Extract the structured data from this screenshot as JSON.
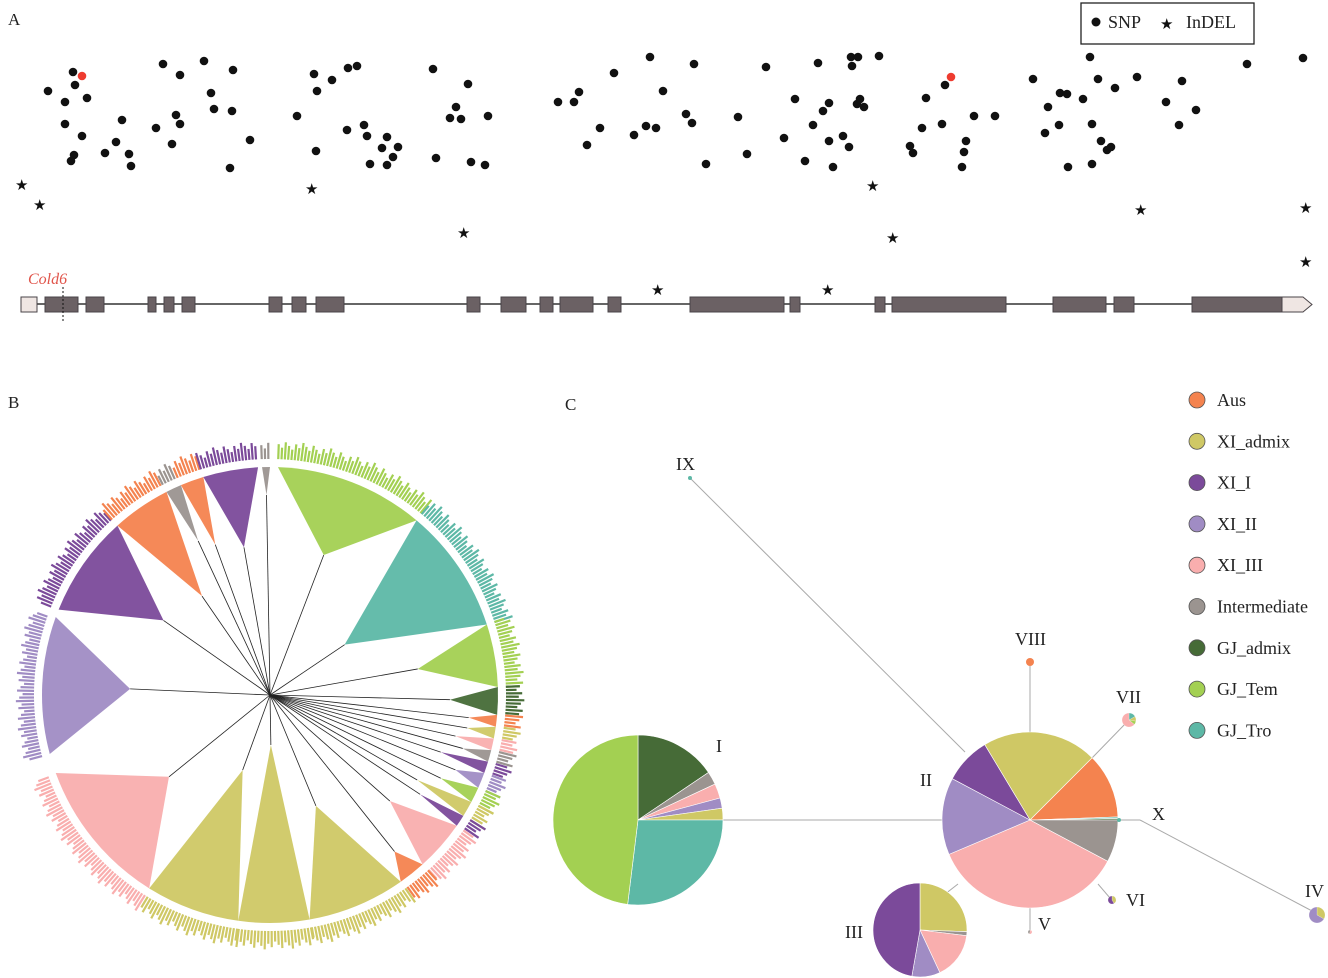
{
  "panels": {
    "a": "A",
    "b": "B",
    "c": "C"
  },
  "legend_a": {
    "snp": "SNP",
    "indel": "InDEL"
  },
  "gene": {
    "name": "Cold6"
  },
  "groups": [
    {
      "name": "Aus",
      "color": "#f4834f"
    },
    {
      "name": "XI_admix",
      "color": "#cfc865"
    },
    {
      "name": "XI_I",
      "color": "#7b4a9a"
    },
    {
      "name": "XI_II",
      "color": "#a08cc4"
    },
    {
      "name": "XI_III",
      "color": "#f9aeae"
    },
    {
      "name": "Intermediate",
      "color": "#9b9490"
    },
    {
      "name": "GJ_admix",
      "color": "#466b37"
    },
    {
      "name": "GJ_Tem",
      "color": "#a3d052"
    },
    {
      "name": "GJ_Tro",
      "color": "#5db8a6"
    }
  ],
  "haplotypes": [
    {
      "label": "I",
      "composition": {
        "GJ_admix": 56,
        "Intermediate": 9,
        "XI_III": 10,
        "XI_II": 7,
        "XI_admix": 8,
        "GJ_Tro": 97,
        "GJ_Tem": 173
      }
    },
    {
      "label": "II",
      "composition": {
        "XI_admix": 76,
        "Aus": 43,
        "GJ_Tro": 1,
        "GJ_admix": 1,
        "Intermediate": 28,
        "XI_III": 129,
        "XI_II": 51,
        "XI_I": 31
      }
    },
    {
      "label": "III",
      "composition": {
        "XI_admix": 92,
        "Intermediate": 5,
        "XI_III": 58,
        "XI_II": 35,
        "XI_I": 170
      }
    },
    {
      "label": "IV",
      "composition": {
        "XI_admix": 120,
        "XI_II": 240
      }
    },
    {
      "label": "V",
      "composition": {
        "XI_III": 200,
        "Intermediate": 160
      }
    },
    {
      "label": "VI",
      "composition": {
        "XI_admix": 150,
        "XI_I": 210
      }
    },
    {
      "label": "VII",
      "composition": {
        "GJ_Tro": 60,
        "XI_admix": 40,
        "GJ_Tem": 30,
        "XI_III": 230
      }
    },
    {
      "label": "VIII",
      "composition": {
        "Aus": 360
      }
    },
    {
      "label": "IX",
      "composition": {
        "GJ_Tro": 360
      }
    },
    {
      "label": "X",
      "composition": {
        "GJ_Tro": 360
      }
    }
  ]
}
